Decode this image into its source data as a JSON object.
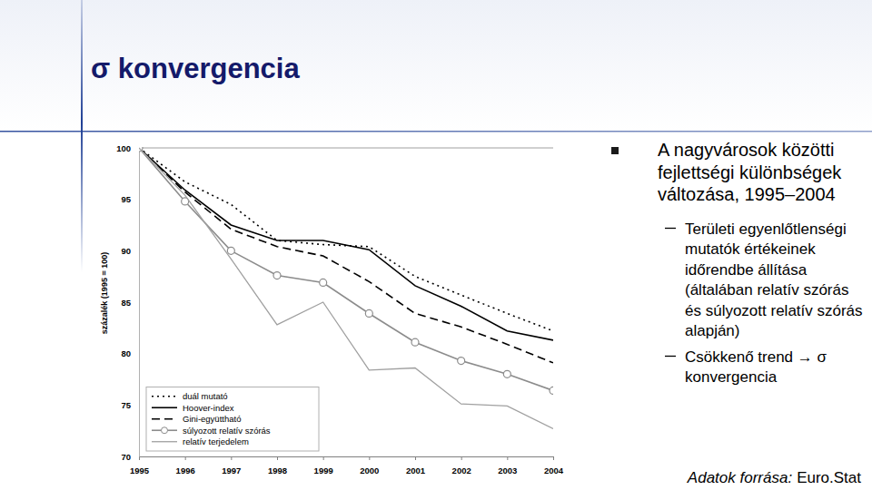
{
  "slide": {
    "title": "σ konvergencia",
    "bullets": [
      {
        "text": "A nagyvárosok közötti fejlettségi különbségek változása, 1995–2004",
        "sub": [
          "Területi egyenlőtlenségi mutatók értékeinek időrendbe állítása (általában relatív szórás és súlyozott relatív szórás alapján)",
          "Csökkenő trend → σ konvergencia"
        ]
      }
    ],
    "source_label": "Adatok forrása:",
    "source": "Euro.Stat"
  },
  "chart_data": {
    "type": "line",
    "ylabel": "százalék (1995 = 100)",
    "x": [
      1995,
      1996,
      1997,
      1998,
      1999,
      2000,
      2001,
      2002,
      2003,
      2004
    ],
    "xlim": [
      1995,
      2004
    ],
    "xticks": [
      1995,
      1996,
      1997,
      1998,
      1999,
      2000,
      2001,
      2002,
      2003,
      2004
    ],
    "ylim": [
      70,
      100
    ],
    "yticks": [
      70,
      75,
      80,
      85,
      90,
      95,
      100
    ],
    "grid": false,
    "legend": "bottom-left",
    "series": [
      {
        "name": "duál mutató",
        "color": "#000000",
        "line_style": "dotted",
        "marker": "none",
        "values": [
          100,
          96.7,
          94.5,
          91.0,
          90.6,
          90.4,
          87.5,
          85.7,
          83.9,
          82.2
        ]
      },
      {
        "name": "Hoover-index",
        "color": "#000000",
        "line_style": "solid",
        "marker": "none",
        "values": [
          100,
          95.9,
          92.5,
          91.0,
          91.0,
          90.1,
          86.6,
          84.6,
          82.2,
          81.3
        ]
      },
      {
        "name": "Gini-együttható",
        "color": "#000000",
        "line_style": "dashed",
        "marker": "none",
        "values": [
          100,
          95.7,
          92.1,
          90.4,
          89.5,
          87.0,
          83.9,
          82.6,
          80.9,
          79.1
        ]
      },
      {
        "name": "súlyozott relatív szórás",
        "color": "#8c8c8c",
        "line_style": "solid",
        "marker": "circle",
        "values": [
          100,
          94.8,
          90.0,
          87.6,
          86.9,
          83.9,
          81.1,
          79.3,
          78.0,
          76.4
        ]
      },
      {
        "name": "relatív terjedelem",
        "color": "#a0a0a0",
        "line_style": "solid",
        "marker": "none",
        "values": [
          100,
          95.4,
          89.2,
          82.8,
          85.0,
          78.4,
          78.6,
          75.1,
          74.9,
          72.7
        ]
      }
    ]
  }
}
